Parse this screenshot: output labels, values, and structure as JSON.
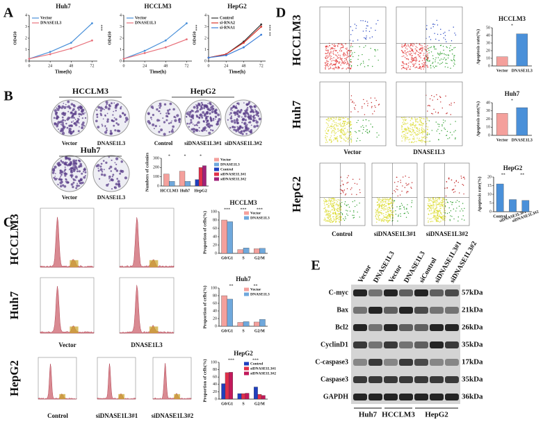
{
  "figure": {
    "panel_labels": [
      "A",
      "B",
      "C",
      "D",
      "E"
    ],
    "colony": {
      "titles": [
        "HCCLM3",
        "HepG2",
        "Huh7"
      ],
      "captions": [
        "Vector",
        "DNASE1L3",
        "Control",
        "siDNASE1L3#1",
        "siDNASE1L3#2",
        "Vector",
        "DNASE1L3"
      ]
    },
    "flow": {
      "row_labels": [
        "HCCLM3",
        "Huh7",
        "HepG2"
      ],
      "captions": [
        "Vector",
        "DNASE1L3",
        "Control",
        "siDNASE1L3#1",
        "siDNASE1L3#2"
      ]
    },
    "apoptosis": {
      "row_labels": [
        "HCCLM3",
        "Huh7",
        "HepG2"
      ],
      "captions": [
        "Vector",
        "DNASE1L3",
        "Control",
        "siDNASE1L3#1",
        "siDNASE1L3#2"
      ]
    },
    "western": {
      "lanes": [
        "Vector",
        "DNASE1L3",
        "Vector",
        "DNASE1L3",
        "siControl",
        "siDNASE1L3#1",
        "siDNASE1L3#2"
      ],
      "proteins": [
        "C-myc",
        "Bax",
        "Bcl2",
        "CyclinD1",
        "C-caspase3",
        "Caspase3",
        "GAPDH"
      ],
      "sizes": [
        "57kDa",
        "21kDa",
        "26kDa",
        "35kDa",
        "17kDa",
        "35kDa",
        "36kDa"
      ],
      "groups": [
        "Huh7",
        "HCCLM3",
        "HepG2"
      ]
    }
  },
  "chart_data": [
    {
      "type": "line",
      "title": "Huh7",
      "xlabel": "Time(h)",
      "ylabel": "OD450",
      "x": [
        0,
        24,
        48,
        72
      ],
      "xlim": [
        0,
        78
      ],
      "xticks": [
        0,
        24,
        48,
        72
      ],
      "ylim": [
        0,
        4
      ],
      "yticks": [
        0,
        1,
        2,
        3,
        4
      ],
      "series": [
        {
          "name": "Vector",
          "color": "#4a90d9",
          "values": [
            0.2,
            0.8,
            1.6,
            3.3
          ]
        },
        {
          "name": "DNASE1L3",
          "color": "#e8707a",
          "values": [
            0.2,
            0.6,
            1.1,
            1.8
          ]
        }
      ],
      "annotations": [
        "***"
      ]
    },
    {
      "type": "line",
      "title": "HCCLM3",
      "xlabel": "Time(h)",
      "ylabel": "OD450",
      "x": [
        0,
        24,
        48,
        72
      ],
      "xlim": [
        0,
        78
      ],
      "xticks": [
        0,
        24,
        48,
        72
      ],
      "ylim": [
        0,
        4
      ],
      "yticks": [
        0,
        1,
        2,
        3,
        4
      ],
      "series": [
        {
          "name": "Vector",
          "color": "#4a90d9",
          "values": [
            0.2,
            0.9,
            1.8,
            3.3
          ]
        },
        {
          "name": "DNASE1L3",
          "color": "#e8707a",
          "values": [
            0.2,
            0.7,
            1.2,
            1.9
          ]
        }
      ],
      "annotations": [
        "***"
      ]
    },
    {
      "type": "line",
      "title": "HepG2",
      "xlabel": "Time(h)",
      "ylabel": "OD450",
      "x": [
        0,
        24,
        48,
        72
      ],
      "xlim": [
        0,
        78
      ],
      "xticks": [
        0,
        24,
        48,
        72
      ],
      "ylim": [
        0,
        4
      ],
      "yticks": [
        0,
        1,
        2,
        3,
        4
      ],
      "series": [
        {
          "name": "Control",
          "color": "#333333",
          "values": [
            0.3,
            0.6,
            1.7,
            3.2
          ]
        },
        {
          "name": "si-RNA2",
          "color": "#d9342b",
          "values": [
            0.3,
            0.6,
            1.6,
            3.0
          ]
        },
        {
          "name": "si-RNA1",
          "color": "#3b7dd8",
          "values": [
            0.3,
            0.5,
            1.2,
            2.3
          ]
        }
      ],
      "annotations": [
        "***",
        "**"
      ]
    },
    {
      "type": "bar",
      "ylabel": "Numbers of colonies",
      "categories": [
        "HCCLM3",
        "Huh7",
        "HepG2"
      ],
      "ylim": [
        0,
        300
      ],
      "yticks": [
        0,
        100,
        200,
        300
      ],
      "legend": "outside right",
      "series": [
        {
          "name": "Vector",
          "color": "#f4a09c",
          "values": [
            130,
            160,
            null
          ]
        },
        {
          "name": "DNASE1L3",
          "color": "#6fa8dc",
          "values": [
            50,
            50,
            null
          ]
        },
        {
          "name": "Control",
          "color": "#1f3fbf",
          "values": [
            null,
            null,
            70
          ]
        },
        {
          "name": "siDNASE1L3#1",
          "color": "#e0304a",
          "values": [
            null,
            null,
            200
          ]
        },
        {
          "name": "siDNASE1L3#2",
          "color": "#a0207a",
          "values": [
            null,
            null,
            220
          ]
        }
      ],
      "annotations": [
        "*",
        "*",
        "*"
      ]
    },
    {
      "type": "bar",
      "title": "HCCLM3",
      "ylabel": "Proportion of cells(%)",
      "categories": [
        "G0/G1",
        "S",
        "G2/M"
      ],
      "ylim": [
        0,
        100
      ],
      "yticks": [
        0,
        20,
        40,
        60,
        80,
        100
      ],
      "legend": "upper right",
      "series": [
        {
          "name": "Vector",
          "color": "#f4a09c",
          "values": [
            80,
            9,
            11
          ]
        },
        {
          "name": "DNASE1L3",
          "color": "#6fa8dc",
          "values": [
            76,
            13,
            12
          ]
        }
      ],
      "annotations": [
        "***",
        "***",
        "***"
      ]
    },
    {
      "type": "bar",
      "title": "Huh7",
      "ylabel": "Proportion of cells(%)",
      "categories": [
        "G0/G1",
        "S",
        "G2/M"
      ],
      "ylim": [
        0,
        100
      ],
      "yticks": [
        0,
        20,
        40,
        60,
        80,
        100
      ],
      "legend": "upper right",
      "series": [
        {
          "name": "Vector",
          "color": "#f4a09c",
          "values": [
            80,
            10,
            11
          ]
        },
        {
          "name": "DNASE1L3",
          "color": "#6fa8dc",
          "values": [
            71,
            12,
            18
          ]
        }
      ],
      "annotations": [
        "**",
        "**"
      ]
    },
    {
      "type": "bar",
      "title": "HepG2",
      "ylabel": "Proportion of cells(%)",
      "categories": [
        "G0/G1",
        "S",
        "G2/M"
      ],
      "ylim": [
        0,
        100
      ],
      "yticks": [
        0,
        20,
        40,
        60,
        80,
        100
      ],
      "legend": "upper right",
      "series": [
        {
          "name": "Control",
          "color": "#1f3fbf",
          "values": [
            42,
            15,
            33
          ]
        },
        {
          "name": "siDNASE1L3#1",
          "color": "#e0304a",
          "values": [
            72,
            15,
            13
          ]
        },
        {
          "name": "siDNASE1L3#2",
          "color": "#c2185b",
          "values": [
            73,
            16,
            10
          ]
        }
      ],
      "annotations": [
        "***",
        "***"
      ]
    },
    {
      "type": "bar",
      "title": "HCCLM3",
      "ylabel": "Apoptosis rate(%)",
      "categories": [
        "Vector",
        "DNASE1L3"
      ],
      "values": [
        12,
        42
      ],
      "colors": [
        "#f4a09c",
        "#4a90d9"
      ],
      "ylim": [
        0,
        50
      ],
      "yticks": [
        0,
        10,
        20,
        30,
        40,
        50
      ],
      "annotations": [
        "*"
      ]
    },
    {
      "type": "bar",
      "title": "Huh7",
      "ylabel": "Apoptosis rate(%)",
      "categories": [
        "Vector",
        "DNASE1L3"
      ],
      "values": [
        27,
        34
      ],
      "colors": [
        "#f4a09c",
        "#4a90d9"
      ],
      "ylim": [
        0,
        40
      ],
      "yticks": [
        0,
        10,
        20,
        30,
        40
      ],
      "annotations": [
        "*"
      ]
    },
    {
      "type": "bar",
      "title": "HepG2",
      "ylabel": "Apoptosis rate(%)",
      "categories": [
        "Control",
        "siDNASE1L3#1",
        "siDNASE1L3#2"
      ],
      "values": [
        16,
        7,
        6.5
      ],
      "colors": [
        "#4a90d9",
        "#4a90d9",
        "#4a90d9"
      ],
      "ylim": [
        0,
        20
      ],
      "yticks": [
        0,
        5,
        10,
        15,
        20
      ],
      "annotations": [
        "**",
        "**"
      ]
    }
  ]
}
